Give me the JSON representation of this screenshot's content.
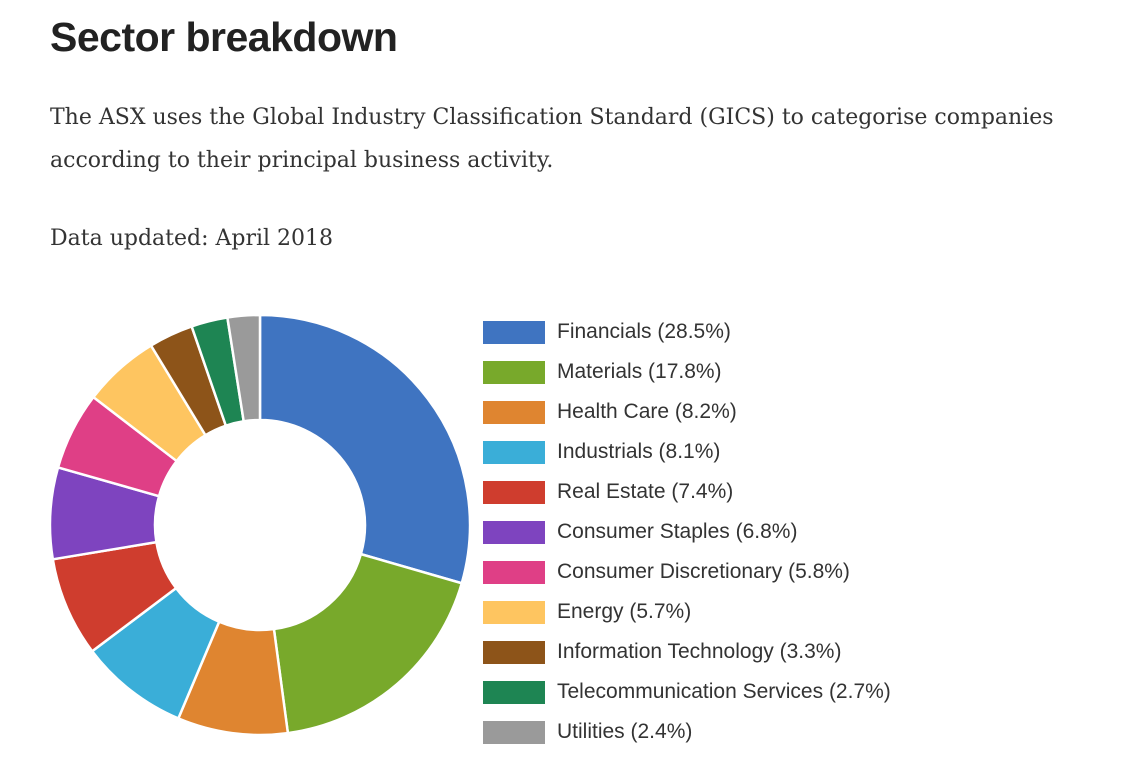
{
  "header": {
    "title": "Sector breakdown",
    "intro": "The ASX uses the Global Industry Classification Standard (GICS) to categorise companies according to their principal business activity.",
    "updated": "Data updated: April 2018"
  },
  "chart_data": {
    "type": "pie",
    "variant": "donut",
    "legend_position": "right",
    "slices": [
      {
        "label": "Financials",
        "value": 28.5,
        "color": "#3f74c1",
        "legend": "Financials (28.5%)"
      },
      {
        "label": "Materials",
        "value": 17.8,
        "color": "#78a92b",
        "legend": "Materials (17.8%)"
      },
      {
        "label": "Health Care",
        "value": 8.2,
        "color": "#df8530",
        "legend": "Health Care (8.2%)"
      },
      {
        "label": "Industrials",
        "value": 8.1,
        "color": "#3aaed8",
        "legend": "Industrials (8.1%)"
      },
      {
        "label": "Real Estate",
        "value": 7.4,
        "color": "#cf3d2e",
        "legend": "Real Estate (7.4%)"
      },
      {
        "label": "Consumer Staples",
        "value": 6.8,
        "color": "#7e44bf",
        "legend": "Consumer Staples (6.8%)"
      },
      {
        "label": "Consumer Discretionary",
        "value": 5.8,
        "color": "#df3f86",
        "legend": "Consumer Discretionary (5.8%)"
      },
      {
        "label": "Energy",
        "value": 5.7,
        "color": "#fec560",
        "legend": "Energy (5.7%)"
      },
      {
        "label": "Information Technology",
        "value": 3.3,
        "color": "#8d5419",
        "legend": "Information Technology (3.3%)"
      },
      {
        "label": "Telecommunication Services",
        "value": 2.7,
        "color": "#1e8553",
        "legend": "Telecommunication Services (2.7%)"
      },
      {
        "label": "Utilities",
        "value": 2.4,
        "color": "#9a9a9a",
        "legend": "Utilities (2.4%)"
      }
    ]
  }
}
